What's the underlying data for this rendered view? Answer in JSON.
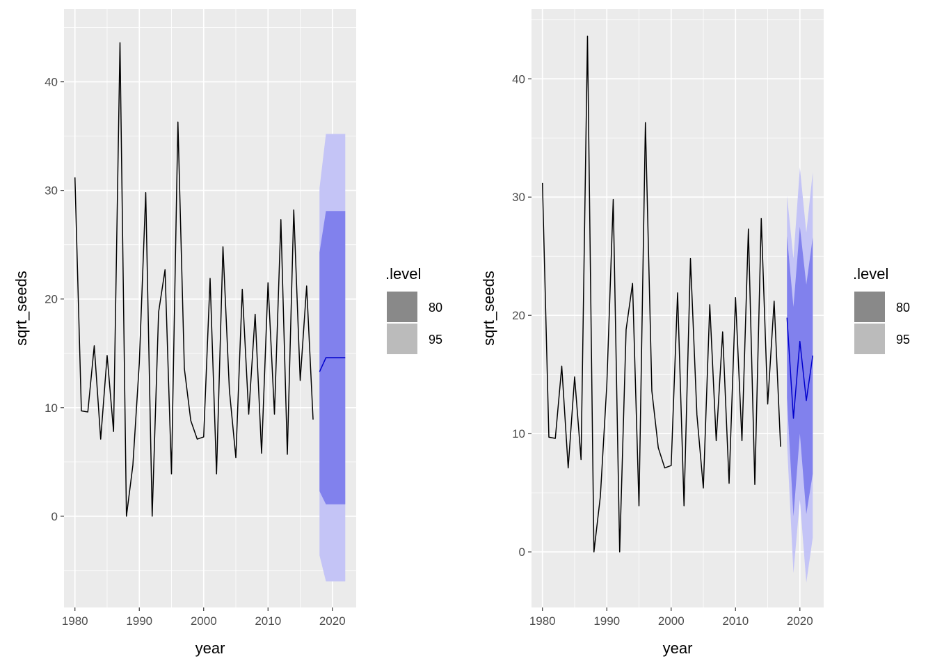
{
  "colors": {
    "panel_bg": "#EBEBEB",
    "grid_major": "#FFFFFF",
    "tick_text": "#4D4D4D",
    "history_line": "#000000",
    "forecast_line": "#0000CC",
    "band_80": "#8181ED",
    "band_95": "#C4C4F6",
    "legend_key_80": "#898989",
    "legend_key_95": "#BBBBBB"
  },
  "chart_data": [
    {
      "type": "line",
      "xlabel": "year",
      "ylabel": "sqrt_seeds",
      "xlim": [
        1978.3,
        2023.7
      ],
      "ylim": [
        -8.4,
        46.7
      ],
      "x_ticks": [
        1980,
        1990,
        2000,
        2010,
        2020
      ],
      "y_ticks": [
        0,
        10,
        20,
        30,
        40
      ],
      "x_tick_labels": [
        "1980",
        "1990",
        "2000",
        "2010",
        "2020"
      ],
      "y_tick_labels": [
        "0",
        "10",
        "20",
        "30",
        "40"
      ],
      "history": {
        "x": [
          1980,
          1981,
          1982,
          1983,
          1984,
          1985,
          1986,
          1987,
          1988,
          1989,
          1990,
          1991,
          1992,
          1993,
          1994,
          1995,
          1996,
          1997,
          1998,
          1999,
          2000,
          2001,
          2002,
          2003,
          2004,
          2005,
          2006,
          2007,
          2008,
          2009,
          2010,
          2011,
          2012,
          2013,
          2014,
          2015,
          2016,
          2017
        ],
        "y": [
          31.2,
          9.7,
          9.6,
          15.7,
          7.1,
          14.8,
          7.8,
          43.6,
          0.0,
          4.7,
          14.1,
          29.8,
          0.0,
          18.8,
          22.7,
          3.9,
          36.3,
          13.6,
          8.8,
          7.1,
          7.3,
          21.9,
          3.9,
          24.8,
          11.6,
          5.4,
          20.9,
          9.4,
          18.6,
          5.8,
          21.5,
          9.4,
          27.3,
          5.7,
          28.2,
          12.5,
          21.2,
          8.9
        ]
      },
      "forecast": {
        "x": [
          2018,
          2019,
          2020,
          2021,
          2022
        ],
        "mean": [
          13.3,
          14.6,
          14.6,
          14.6,
          14.6
        ],
        "lo80": [
          2.3,
          1.1,
          1.1,
          1.1,
          1.1
        ],
        "hi80": [
          24.3,
          28.1,
          28.1,
          28.1,
          28.1
        ],
        "lo95": [
          -3.6,
          -6.0,
          -6.0,
          -6.0,
          -6.0
        ],
        "hi95": [
          30.2,
          35.2,
          35.2,
          35.2,
          35.2
        ]
      },
      "legend": {
        "title": ".level",
        "labels": [
          "80",
          "95"
        ],
        "position": "right"
      }
    },
    {
      "type": "line",
      "xlabel": "year",
      "ylabel": "sqrt_seeds",
      "xlim": [
        1978.3,
        2023.7
      ],
      "ylim": [
        -4.7,
        45.9
      ],
      "x_ticks": [
        1980,
        1990,
        2000,
        2010,
        2020
      ],
      "y_ticks": [
        0,
        10,
        20,
        30,
        40
      ],
      "x_tick_labels": [
        "1980",
        "1990",
        "2000",
        "2010",
        "2020"
      ],
      "y_tick_labels": [
        "0",
        "10",
        "20",
        "30",
        "40"
      ],
      "history": {
        "x": [
          1980,
          1981,
          1982,
          1983,
          1984,
          1985,
          1986,
          1987,
          1988,
          1989,
          1990,
          1991,
          1992,
          1993,
          1994,
          1995,
          1996,
          1997,
          1998,
          1999,
          2000,
          2001,
          2002,
          2003,
          2004,
          2005,
          2006,
          2007,
          2008,
          2009,
          2010,
          2011,
          2012,
          2013,
          2014,
          2015,
          2016,
          2017
        ],
        "y": [
          31.2,
          9.7,
          9.6,
          15.7,
          7.1,
          14.8,
          7.8,
          43.6,
          0.0,
          4.7,
          14.1,
          29.8,
          0.0,
          18.8,
          22.7,
          3.9,
          36.3,
          13.6,
          8.8,
          7.1,
          7.3,
          21.9,
          3.9,
          24.8,
          11.6,
          5.4,
          20.9,
          9.4,
          18.6,
          5.8,
          21.5,
          9.4,
          27.3,
          5.7,
          28.2,
          12.5,
          21.2,
          8.9
        ]
      },
      "forecast": {
        "x": [
          2018,
          2019,
          2020,
          2021,
          2022
        ],
        "mean": [
          19.8,
          11.3,
          17.8,
          12.8,
          16.6
        ],
        "lo80": [
          13.0,
          3.0,
          10.0,
          3.2,
          6.6
        ],
        "hi80": [
          26.7,
          20.7,
          27.5,
          22.6,
          26.6
        ],
        "lo95": [
          9.2,
          -1.8,
          4.4,
          -2.6,
          1.2
        ],
        "hi95": [
          30.1,
          24.8,
          32.5,
          27.0,
          32.1
        ]
      },
      "legend": {
        "title": ".level",
        "labels": [
          "80",
          "95"
        ],
        "position": "right"
      }
    }
  ]
}
